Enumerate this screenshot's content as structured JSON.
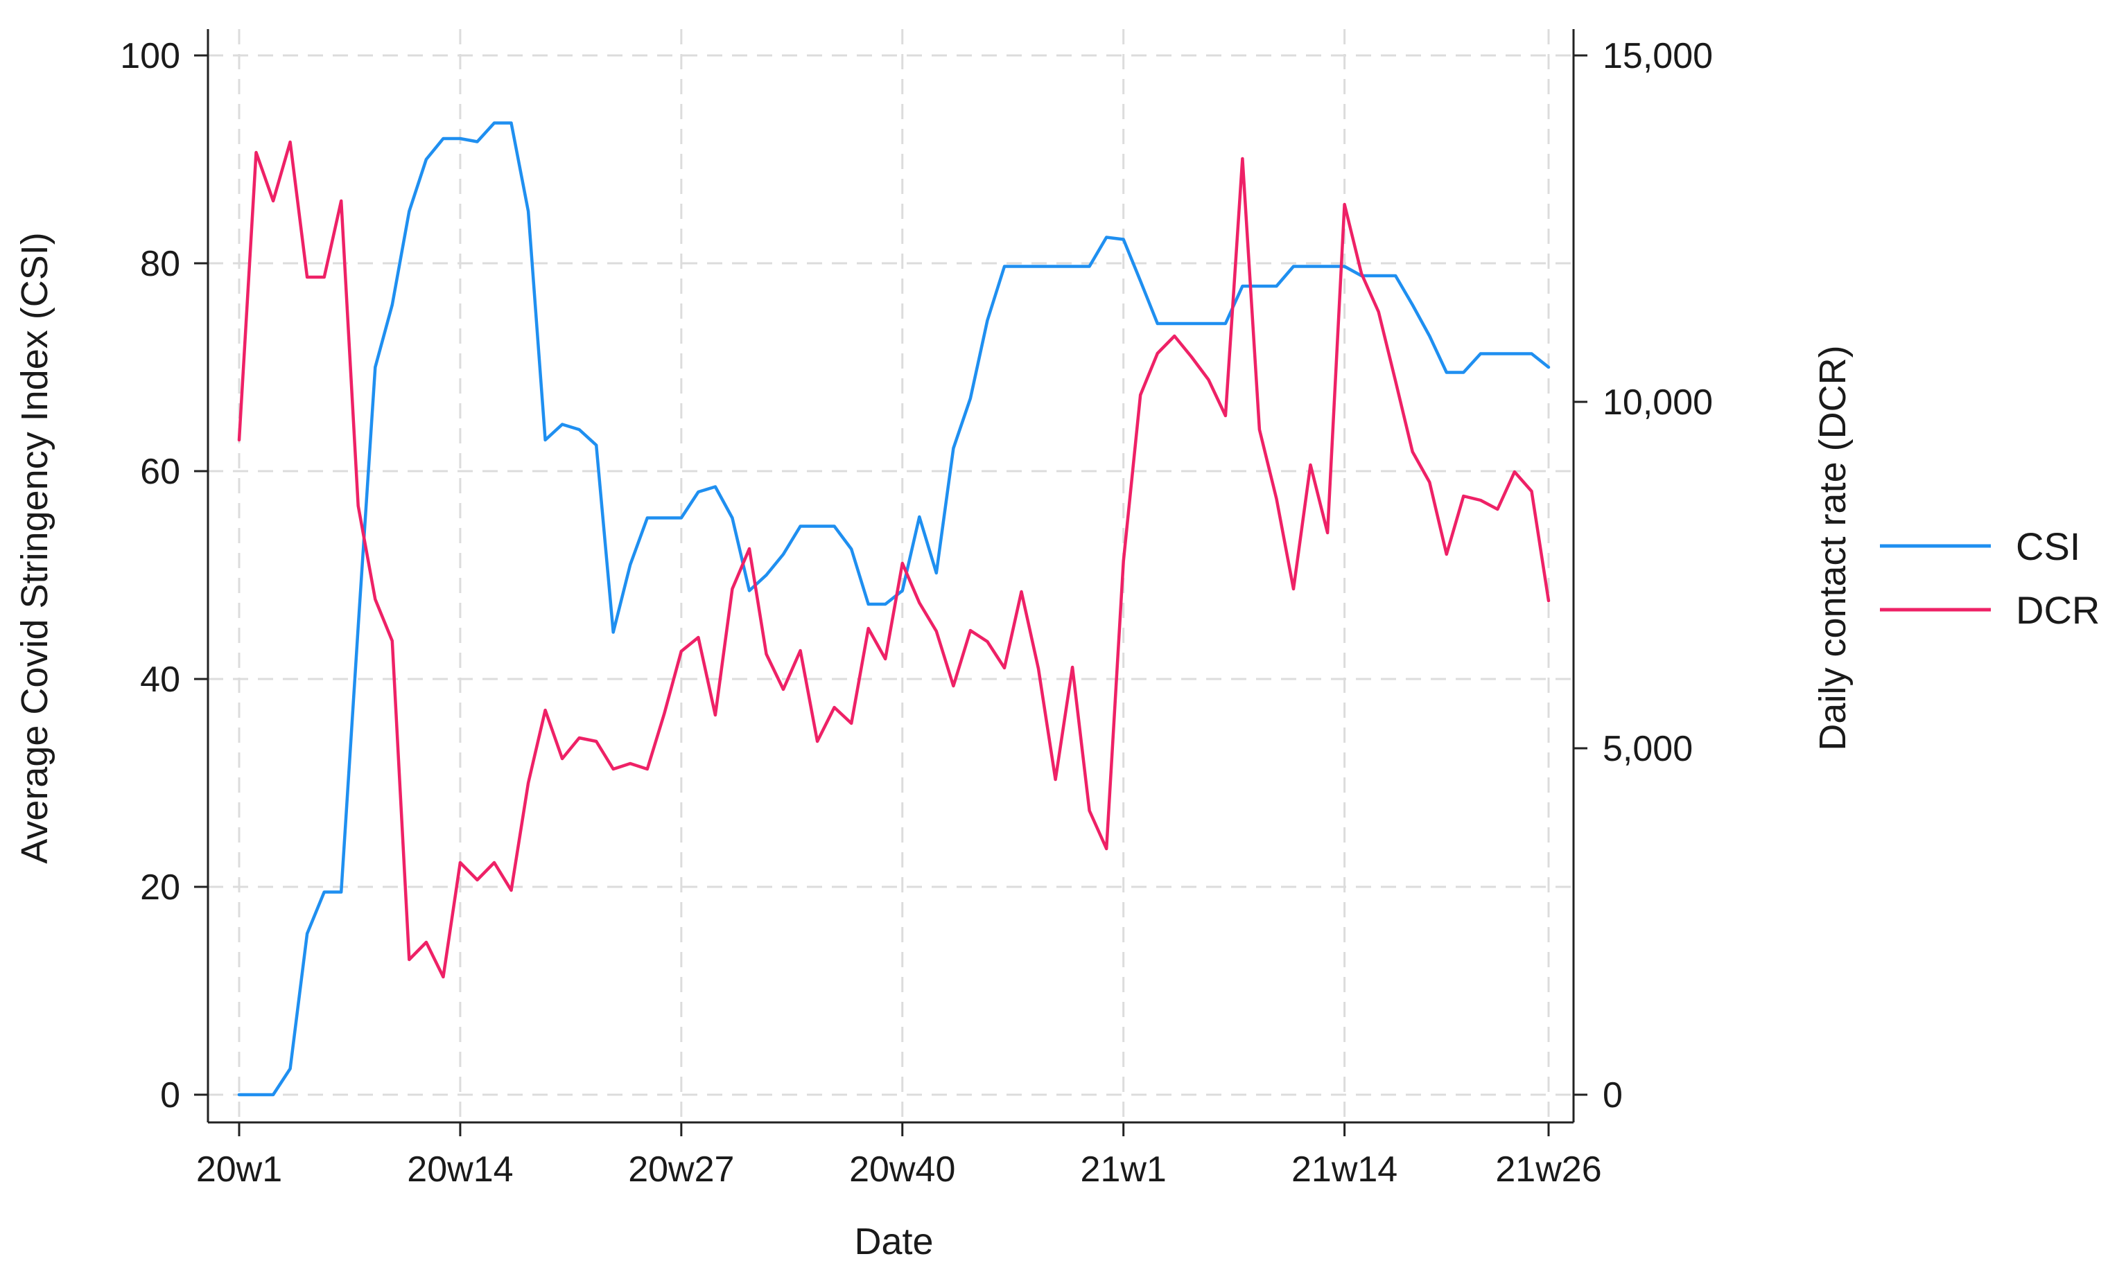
{
  "chart_data": {
    "type": "line",
    "xlabel": "Date",
    "x_start": "20w1",
    "x_ticks": [
      {
        "label": "20w1",
        "index": 0
      },
      {
        "label": "20w14",
        "index": 13
      },
      {
        "label": "20w27",
        "index": 26
      },
      {
        "label": "20w40",
        "index": 39
      },
      {
        "label": "21w1",
        "index": 52
      },
      {
        "label": "21w14",
        "index": 65
      },
      {
        "label": "21w26",
        "index": 77
      }
    ],
    "xlim": [
      0,
      77
    ],
    "y_left": {
      "label": "Average Covid Stringency Index (CSI)",
      "lim": [
        0,
        100
      ],
      "ticks": [
        0,
        20,
        40,
        60,
        80,
        100
      ],
      "tick_labels": [
        "0",
        "20",
        "40",
        "60",
        "80",
        "100"
      ]
    },
    "y_right": {
      "label": "Daily contact rate (DCR)",
      "lim": [
        0,
        15000
      ],
      "ticks": [
        0,
        5000,
        10000,
        15000
      ],
      "tick_labels": [
        "0",
        "5,000",
        "10,000",
        "15,000"
      ]
    },
    "grid": true,
    "legend_position": "right",
    "series": [
      {
        "name": "CSI",
        "axis": "left",
        "color": "#1f8ff0",
        "values": [
          0,
          0,
          0,
          2.5,
          15.5,
          19.5,
          19.5,
          45,
          70,
          76,
          85,
          90,
          92,
          92,
          91.7,
          93.5,
          93.5,
          85,
          63,
          64.5,
          64,
          62.5,
          44.5,
          51,
          55.5,
          55.5,
          55.5,
          58,
          58.5,
          55.5,
          48.5,
          50,
          52,
          54.7,
          54.7,
          54.7,
          52.5,
          47.2,
          47.2,
          48.5,
          55.6,
          50.2,
          62.2,
          67,
          74.5,
          79.7,
          79.7,
          79.7,
          79.7,
          79.7,
          79.7,
          82.5,
          82.3,
          78.3,
          74.2,
          74.2,
          74.2,
          74.2,
          74.2,
          77.8,
          77.8,
          77.8,
          79.7,
          79.7,
          79.7,
          79.7,
          78.8,
          78.8,
          78.8,
          76,
          73,
          69.5,
          69.5,
          71.3,
          71.3,
          71.3,
          71.3,
          70
        ]
      },
      {
        "name": "DCR",
        "axis": "right",
        "color": "#ee2166",
        "values": [
          9450,
          13600,
          12900,
          13750,
          11800,
          11800,
          12900,
          8500,
          7150,
          6550,
          1950,
          2200,
          1700,
          3350,
          3100,
          3350,
          2950,
          4500,
          5550,
          4850,
          5150,
          5100,
          4700,
          4780,
          4700,
          5500,
          6400,
          6600,
          5480,
          7300,
          7880,
          6360,
          5850,
          6410,
          5100,
          5590,
          5360,
          6730,
          6290,
          7670,
          7100,
          6690,
          5900,
          6700,
          6540,
          6160,
          7260,
          6150,
          4550,
          6170,
          4100,
          3550,
          7700,
          10100,
          10700,
          10950,
          10650,
          10320,
          9800,
          13510,
          9600,
          8600,
          7300,
          9090,
          8110,
          12850,
          11850,
          11300,
          10300,
          9280,
          8840,
          7800,
          8640,
          8580,
          8450,
          8990,
          8710,
          7130
        ]
      }
    ]
  }
}
